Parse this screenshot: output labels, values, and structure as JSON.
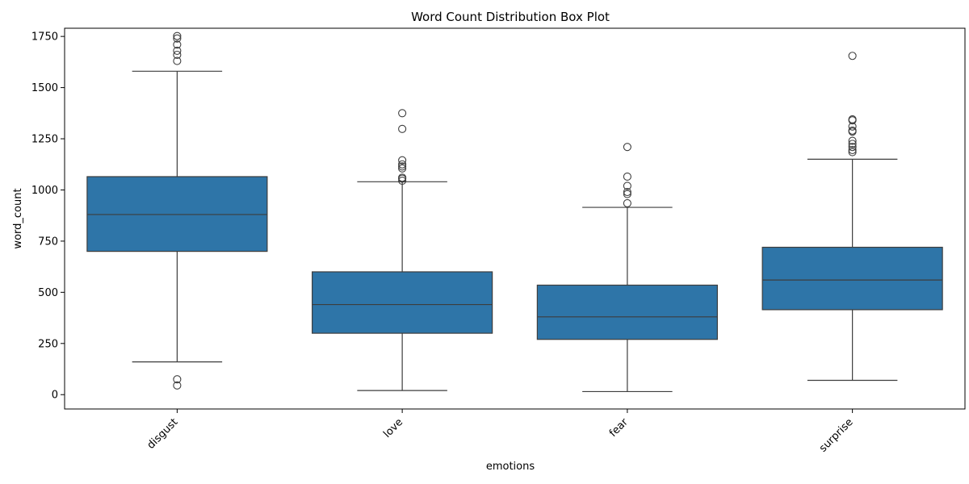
{
  "chart_data": {
    "type": "box",
    "title": "Word Count Distribution Box Plot",
    "xlabel": "emotions",
    "ylabel": "word_count",
    "ylim": [
      -70,
      1790
    ],
    "yticks": [
      0,
      250,
      500,
      750,
      1000,
      1250,
      1500,
      1750
    ],
    "ytick_labels": [
      "0",
      "250",
      "500",
      "750",
      "1000",
      "1250",
      "1500",
      "1750"
    ],
    "categories": [
      "disgust",
      "love",
      "fear",
      "surprise"
    ],
    "box_color": "#2e75a8",
    "line_color": "#3d3d3d",
    "boxes": [
      {
        "name": "disgust",
        "whisker_low": 160,
        "q1": 700,
        "median": 880,
        "q3": 1065,
        "whisker_high": 1580,
        "outliers": [
          75,
          45,
          1630,
          1660,
          1680,
          1710,
          1740,
          1752
        ]
      },
      {
        "name": "love",
        "whisker_low": 20,
        "q1": 300,
        "median": 440,
        "q3": 600,
        "whisker_high": 1040,
        "outliers": [
          1045,
          1055,
          1060,
          1105,
          1115,
          1125,
          1145,
          1298,
          1375
        ]
      },
      {
        "name": "fear",
        "whisker_low": 15,
        "q1": 270,
        "median": 380,
        "q3": 535,
        "whisker_high": 915,
        "outliers": [
          935,
          980,
          990,
          1020,
          1065,
          1210
        ]
      },
      {
        "name": "surprise",
        "whisker_low": 70,
        "q1": 415,
        "median": 560,
        "q3": 720,
        "whisker_high": 1150,
        "outliers": [
          1185,
          1195,
          1210,
          1225,
          1240,
          1285,
          1290,
          1310,
          1340,
          1345,
          1655
        ]
      }
    ]
  }
}
